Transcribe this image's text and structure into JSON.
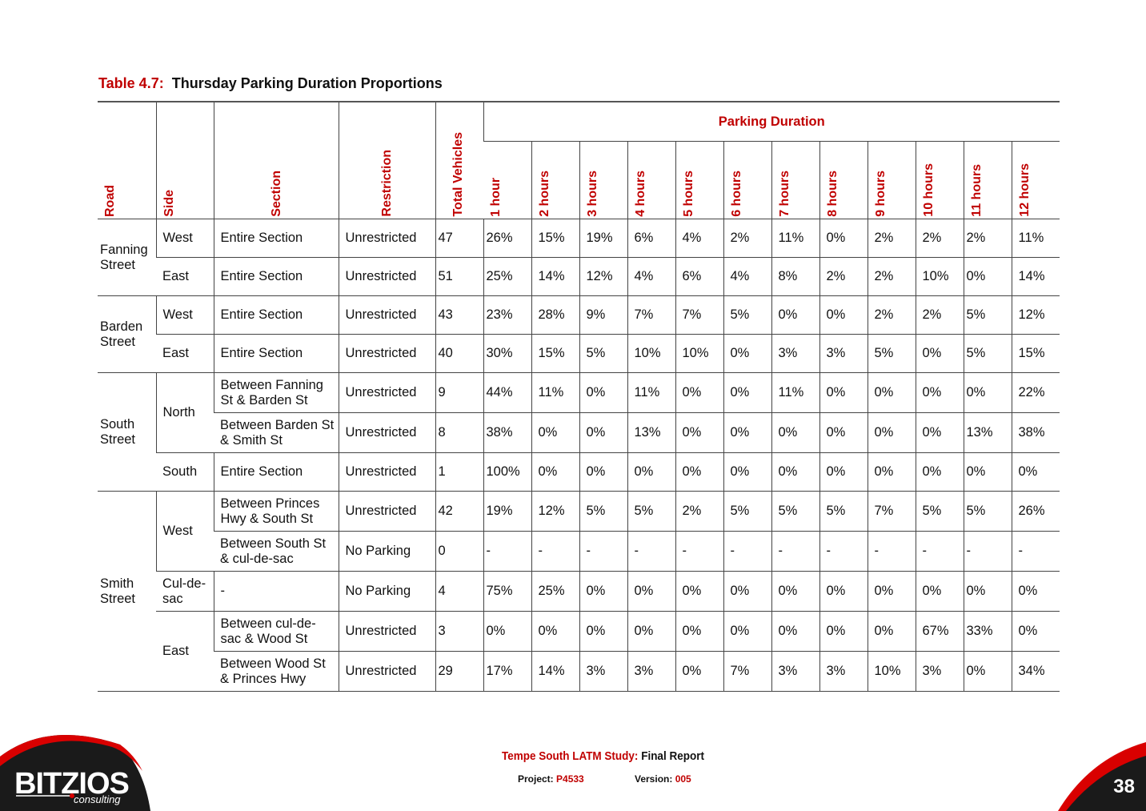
{
  "caption": {
    "label": "Table 4.7:",
    "title": "Thursday Parking Duration Proportions"
  },
  "headers": {
    "road": "Road",
    "side": "Side",
    "section": "Section",
    "restriction": "Restriction",
    "total": "Total Vehicles",
    "duration_group": "Parking Duration",
    "durations": [
      "1 hour",
      "2 hours",
      "3 hours",
      "4 hours",
      "5 hours",
      "6 hours",
      "7 hours",
      "8 hours",
      "9 hours",
      "10 hours",
      "11 hours",
      "12 hours"
    ]
  },
  "rows": [
    {
      "section": "Entire Section",
      "restriction": "Unrestricted",
      "total": "47",
      "values": [
        "26%",
        "15%",
        "19%",
        "6%",
        "4%",
        "2%",
        "11%",
        "0%",
        "2%",
        "2%",
        "2%",
        "11%"
      ]
    },
    {
      "section": "Entire Section",
      "restriction": "Unrestricted",
      "total": "51",
      "values": [
        "25%",
        "14%",
        "12%",
        "4%",
        "6%",
        "4%",
        "8%",
        "2%",
        "2%",
        "10%",
        "0%",
        "14%"
      ]
    },
    {
      "section": "Entire Section",
      "restriction": "Unrestricted",
      "total": "43",
      "values": [
        "23%",
        "28%",
        "9%",
        "7%",
        "7%",
        "5%",
        "0%",
        "0%",
        "2%",
        "2%",
        "5%",
        "12%"
      ]
    },
    {
      "section": "Entire Section",
      "restriction": "Unrestricted",
      "total": "40",
      "values": [
        "30%",
        "15%",
        "5%",
        "10%",
        "10%",
        "0%",
        "3%",
        "3%",
        "5%",
        "0%",
        "5%",
        "15%"
      ]
    },
    {
      "section": "Between Fanning St & Barden St",
      "restriction": "Unrestricted",
      "total": "9",
      "values": [
        "44%",
        "11%",
        "0%",
        "11%",
        "0%",
        "0%",
        "11%",
        "0%",
        "0%",
        "0%",
        "0%",
        "22%"
      ]
    },
    {
      "section": "Between Barden St & Smith St",
      "restriction": "Unrestricted",
      "total": "8",
      "values": [
        "38%",
        "0%",
        "0%",
        "13%",
        "0%",
        "0%",
        "0%",
        "0%",
        "0%",
        "0%",
        "13%",
        "38%"
      ]
    },
    {
      "section": "Entire Section",
      "restriction": "Unrestricted",
      "total": "1",
      "values": [
        "100%",
        "0%",
        "0%",
        "0%",
        "0%",
        "0%",
        "0%",
        "0%",
        "0%",
        "0%",
        "0%",
        "0%"
      ]
    },
    {
      "section": "Between Princes Hwy & South St",
      "restriction": "Unrestricted",
      "total": "42",
      "values": [
        "19%",
        "12%",
        "5%",
        "5%",
        "2%",
        "5%",
        "5%",
        "5%",
        "7%",
        "5%",
        "5%",
        "26%"
      ]
    },
    {
      "section": "Between South St & cul-de-sac",
      "restriction": "No Parking",
      "total": "0",
      "values": [
        "-",
        "-",
        "-",
        "-",
        "-",
        "-",
        "-",
        "-",
        "-",
        "-",
        "-",
        "-"
      ]
    },
    {
      "section": "-",
      "restriction": "No Parking",
      "total": "4",
      "values": [
        "75%",
        "25%",
        "0%",
        "0%",
        "0%",
        "0%",
        "0%",
        "0%",
        "0%",
        "0%",
        "0%",
        "0%"
      ]
    },
    {
      "section": "Between cul-de-sac & Wood St",
      "restriction": "Unrestricted",
      "total": "3",
      "values": [
        "0%",
        "0%",
        "0%",
        "0%",
        "0%",
        "0%",
        "0%",
        "0%",
        "0%",
        "67%",
        "33%",
        "0%"
      ]
    },
    {
      "section": "Between Wood St & Princes Hwy",
      "restriction": "Unrestricted",
      "total": "29",
      "values": [
        "17%",
        "14%",
        "3%",
        "3%",
        "0%",
        "7%",
        "3%",
        "3%",
        "10%",
        "3%",
        "0%",
        "34%"
      ]
    }
  ],
  "roads": {
    "fanning": "Fanning Street",
    "barden": "Barden Street",
    "south": "South Street",
    "smith": "Smith Street"
  },
  "sides": {
    "fanning_west": "West",
    "fanning_east": "East",
    "barden_west": "West",
    "barden_east": "East",
    "south_north": "North",
    "south_south": "South",
    "smith_west": "West",
    "smith_culdesac": "Cul-de-sac",
    "smith_east": "East"
  },
  "footer": {
    "study": "Tempe South LATM Study:",
    "report": "Final Report",
    "project_label": "Project:",
    "project": "P4533",
    "version_label": "Version:",
    "version": "005",
    "page": "38"
  },
  "logo": {
    "name": "BITZIOS",
    "sub": "consulting"
  },
  "colors": {
    "accent": "#c00000",
    "logo_bg": "#1a1a1a"
  }
}
